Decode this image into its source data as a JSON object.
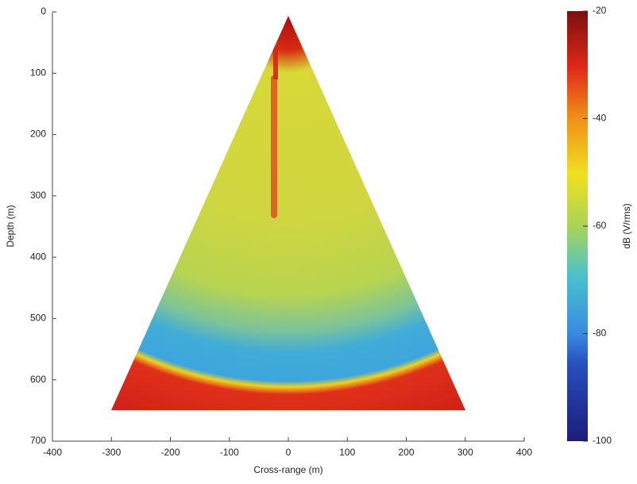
{
  "chart_data": {
    "type": "heatmap",
    "xlabel": "Cross-range (m)",
    "ylabel": "Depth (m)",
    "xlim": [
      -400,
      400
    ],
    "xticks": [
      -400,
      -300,
      -200,
      -100,
      0,
      100,
      200,
      300,
      400
    ],
    "ylim": [
      0,
      700
    ],
    "yticks": [
      0,
      100,
      200,
      300,
      400,
      500,
      600,
      700
    ],
    "y_inverted": true,
    "colorbar": {
      "label": "dB (V/rms)",
      "lim": [
        -100,
        -20
      ],
      "ticks": [
        -100,
        -80,
        -60,
        -40,
        -20
      ],
      "colormap": "jet"
    }
  }
}
